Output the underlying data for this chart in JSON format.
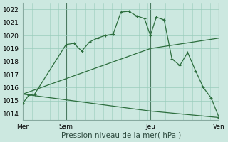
{
  "xlabel": "Pression niveau de la mer( hPa )",
  "ylim": [
    1013.5,
    1022.5
  ],
  "xlim": [
    0,
    100
  ],
  "yticks": [
    1014,
    1015,
    1016,
    1017,
    1018,
    1019,
    1020,
    1021,
    1022
  ],
  "xtick_positions": [
    0,
    22,
    65,
    100
  ],
  "xtick_labels": [
    "Mer",
    "Sam",
    "Jeu",
    "Ven"
  ],
  "vline_positions": [
    22,
    65,
    100
  ],
  "bg_color": "#cce8e0",
  "grid_color": "#99ccbb",
  "line_color": "#2d6e3e",
  "line1_x": [
    0,
    3,
    6,
    22,
    26,
    30,
    34,
    38,
    42,
    46,
    50,
    54,
    58,
    62,
    65,
    68,
    72,
    76,
    80,
    84,
    88,
    92,
    96,
    100
  ],
  "line1_y": [
    1014.8,
    1015.4,
    1015.5,
    1019.3,
    1019.4,
    1018.8,
    1019.5,
    1019.8,
    1020.0,
    1020.1,
    1021.8,
    1021.85,
    1021.5,
    1021.3,
    1020.0,
    1021.4,
    1021.2,
    1018.2,
    1017.7,
    1018.7,
    1017.3,
    1016.0,
    1015.2,
    1013.7
  ],
  "line2_x": [
    0,
    65,
    100
  ],
  "line2_y": [
    1015.5,
    1019.0,
    1019.8
  ],
  "line3_x": [
    0,
    65,
    100
  ],
  "line3_y": [
    1015.5,
    1014.2,
    1013.7
  ]
}
